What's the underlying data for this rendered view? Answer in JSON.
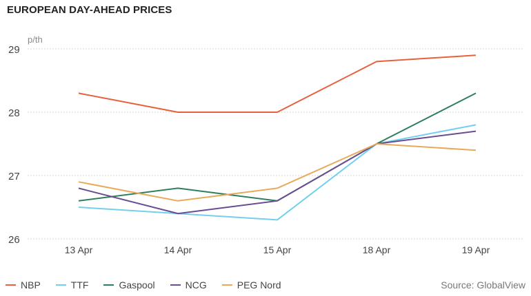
{
  "title": "EUROPEAN DAY-AHEAD PRICES",
  "source": "Source: GlobalView",
  "chart_data": {
    "type": "line",
    "title": "EUROPEAN DAY-AHEAD PRICES",
    "ylabel": "p/th",
    "xlabel": "",
    "categories": [
      "13 Apr",
      "14 Apr",
      "15 Apr",
      "18 Apr",
      "19 Apr"
    ],
    "ylim": [
      26,
      29
    ],
    "yticks": [
      26,
      27,
      28,
      29
    ],
    "grid": "horizontal dotted",
    "legend": "bottom",
    "series": [
      {
        "name": "NBP",
        "color": "#e8603c",
        "values": [
          28.3,
          28.0,
          28.0,
          28.8,
          28.9
        ]
      },
      {
        "name": "TTF",
        "color": "#72cfee",
        "values": [
          26.5,
          26.4,
          26.3,
          27.5,
          27.8
        ]
      },
      {
        "name": "Gaspool",
        "color": "#2e7d5b",
        "values": [
          26.6,
          26.8,
          26.6,
          27.5,
          28.3
        ]
      },
      {
        "name": "NCG",
        "color": "#6a4c93",
        "values": [
          26.8,
          26.4,
          26.6,
          27.5,
          27.7
        ]
      },
      {
        "name": "PEG Nord",
        "color": "#e8a95a",
        "values": [
          26.9,
          26.6,
          26.8,
          27.5,
          27.4
        ]
      }
    ]
  }
}
